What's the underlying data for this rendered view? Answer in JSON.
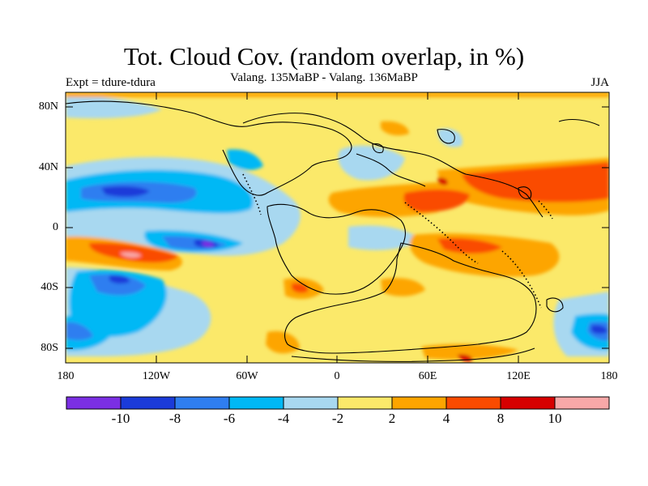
{
  "title": "Tot. Cloud Cov. (random overlap, in %)",
  "subtitle": "Valang.  135MaBP - Valang.  136MaBP",
  "left_label": "Expt = tdure-tdura",
  "right_label": "JJA",
  "y_ticks": [
    "80N",
    "40N",
    "0",
    "40S",
    "80S"
  ],
  "x_ticks": [
    "180",
    "120W",
    "60W",
    "0",
    "60E",
    "120E",
    "180"
  ],
  "colorbar": {
    "colors": [
      "#7b2fe3",
      "#1b3bd9",
      "#2f7ef0",
      "#00b8f5",
      "#a8d8f0",
      "#fbe96a",
      "#fda500",
      "#fa4b00",
      "#d60000",
      "#f8a8a8"
    ],
    "labels": [
      "-10",
      "-8",
      "-6",
      "-4",
      "-2",
      "2",
      "4",
      "8",
      "10"
    ]
  }
}
